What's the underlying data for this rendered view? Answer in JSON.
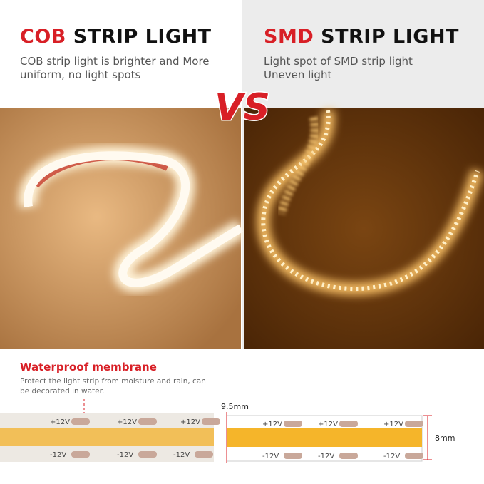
{
  "left": {
    "title_highlight": "COB",
    "title_rest": "STRIP LIGHT",
    "subtitle_lines": [
      "COB strip light is brighter and More",
      "uniform, no light spots"
    ]
  },
  "right": {
    "title_highlight": "SMD",
    "title_rest": "STRIP LIGHT",
    "subtitle_lines": [
      "Light spot of SMD strip light",
      "Uneven light"
    ]
  },
  "vs": "VS",
  "feature": {
    "title": "Waterproof membrane",
    "description_lines": [
      "Protect the light strip from moisture and rain, can",
      "be decorated in water."
    ]
  },
  "dimensions": {
    "width": "9.5mm",
    "height": "8mm"
  },
  "strips": {
    "left_top": [
      "+12V",
      "+12V",
      "+12V"
    ],
    "left_bottom": [
      "-12V",
      "-12V",
      "-12V"
    ],
    "right_top": [
      "+12V",
      "+12V",
      "+12V"
    ],
    "right_bottom": [
      "-12V",
      "-12V",
      "-12V"
    ]
  }
}
